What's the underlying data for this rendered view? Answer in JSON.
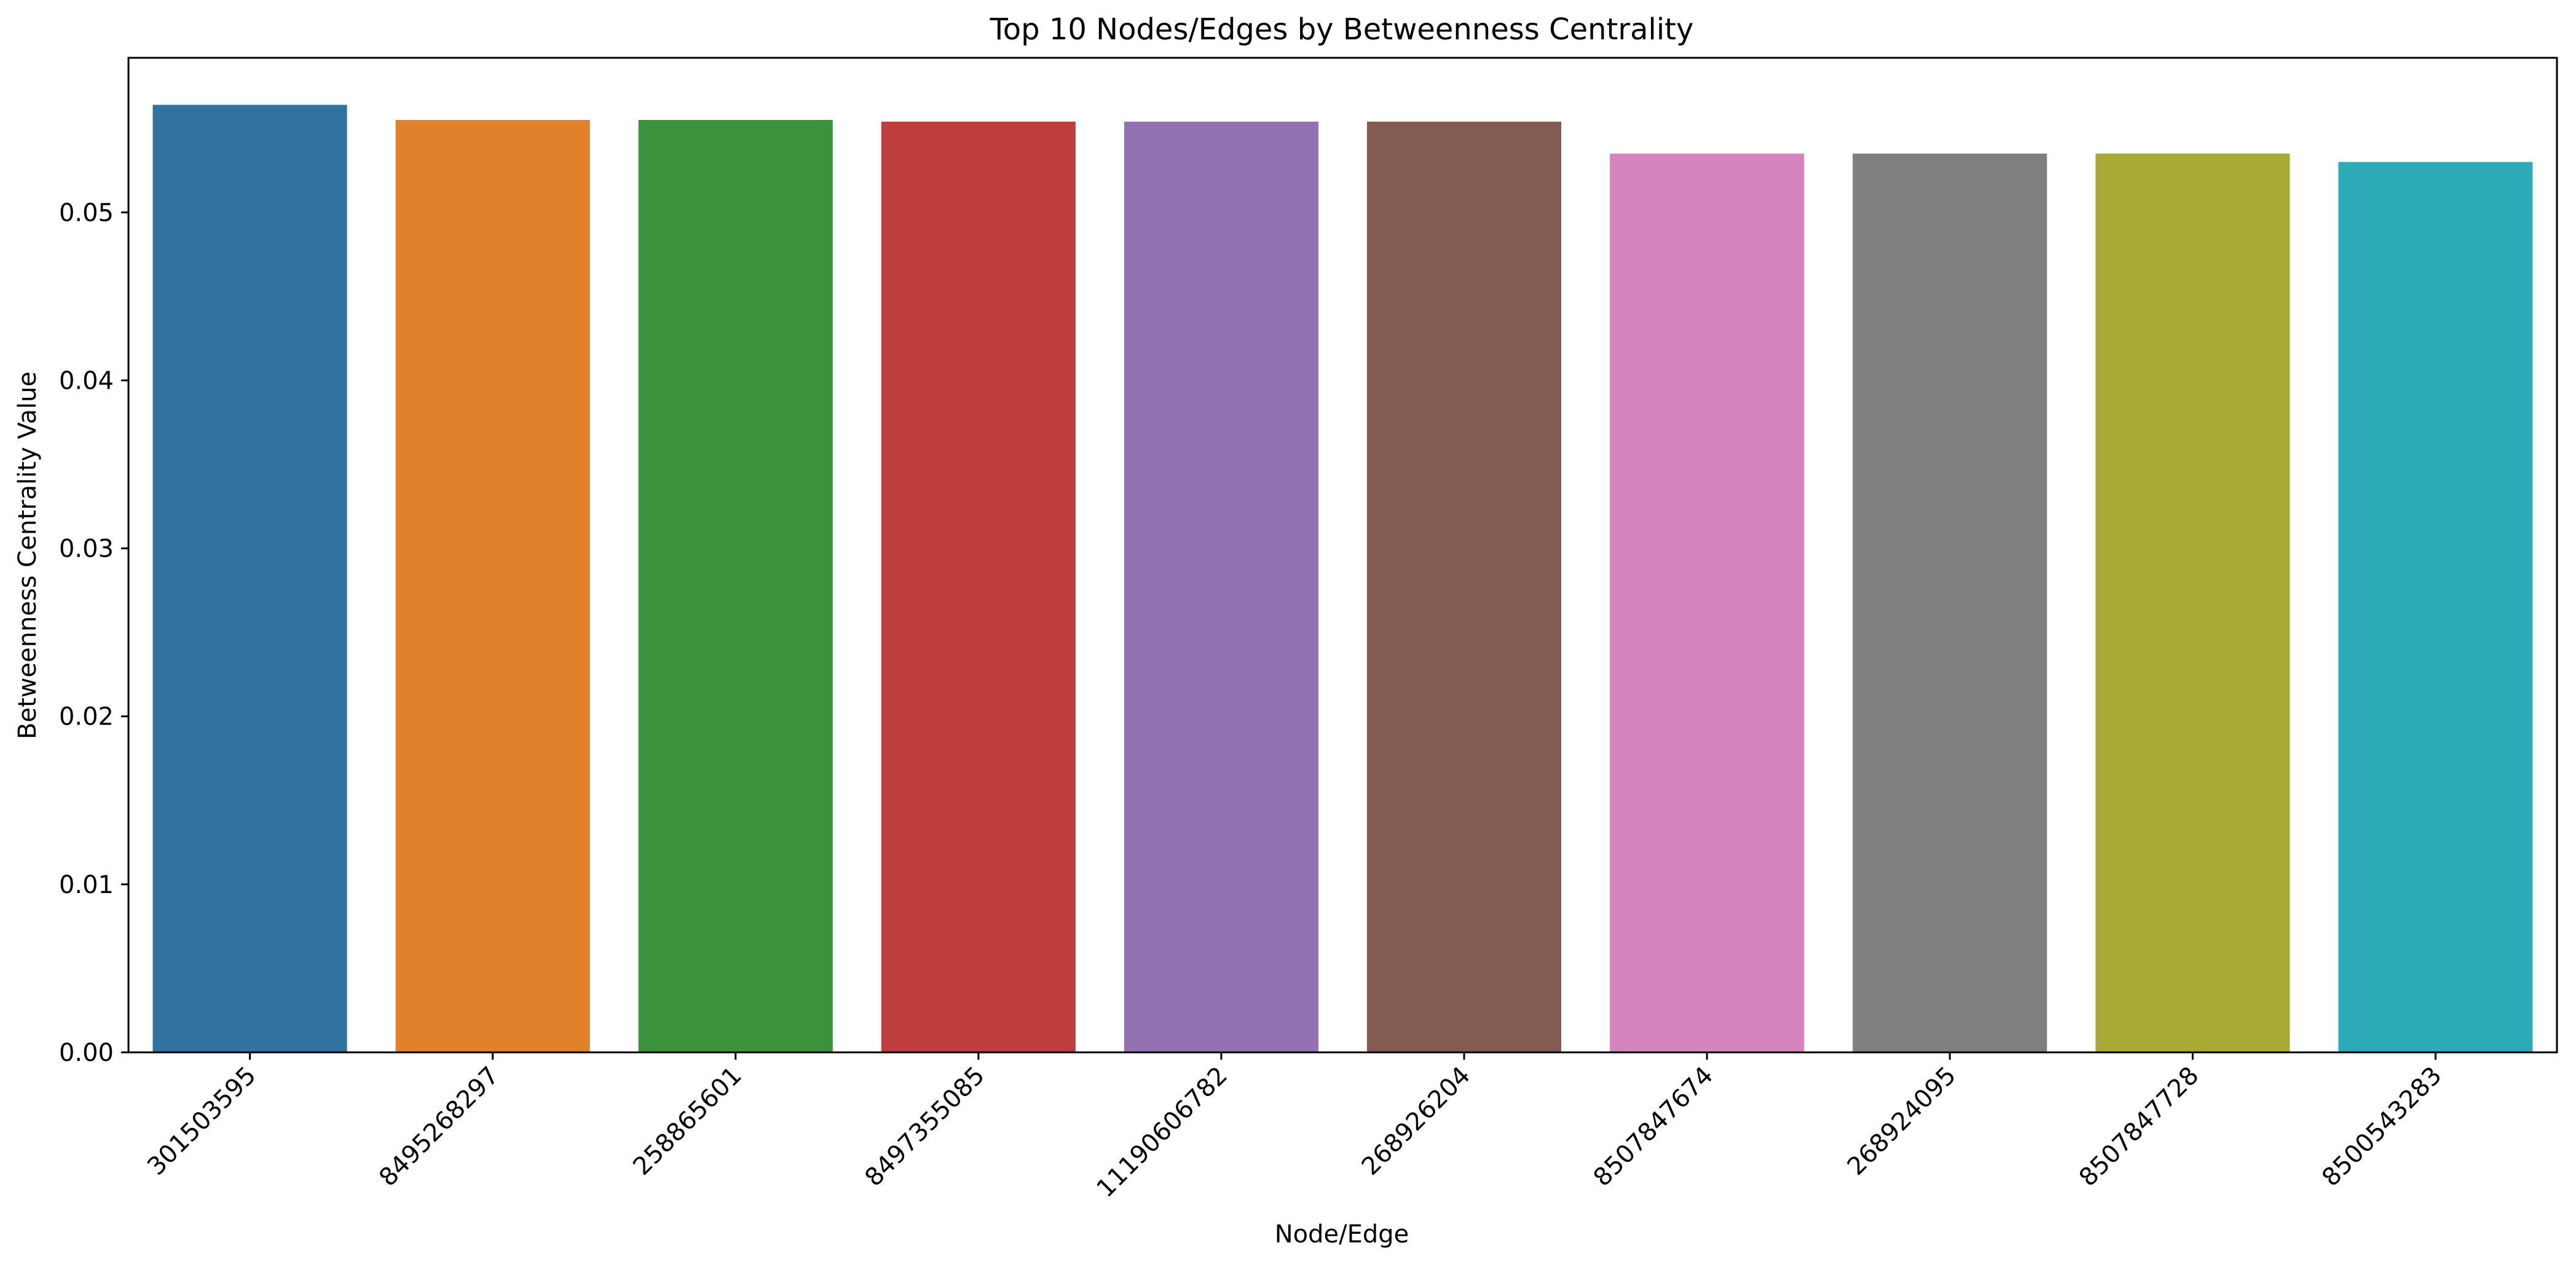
{
  "chart_data": {
    "type": "bar",
    "title": "Top 10 Nodes/Edges by Betweenness Centrality",
    "xlabel": "Node/Edge",
    "ylabel": "Betweenness Centrality Value",
    "categories": [
      "301503595",
      "8495268297",
      "258865601",
      "8497355085",
      "11190606782",
      "268926204",
      "8507847674",
      "268924095",
      "8507847728",
      "8500543283"
    ],
    "values": [
      0.0564,
      0.0555,
      0.0555,
      0.0554,
      0.0554,
      0.0554,
      0.0535,
      0.0535,
      0.0535,
      0.053
    ],
    "colors": [
      "#3274a1",
      "#e1812c",
      "#3a923a",
      "#c03d3e",
      "#9372b2",
      "#845b53",
      "#d684bd",
      "#7f7f7f",
      "#a9aa35",
      "#2eabb8"
    ],
    "ylim": [
      0,
      0.0592
    ],
    "yticks": [
      0.0,
      0.01,
      0.02,
      0.03,
      0.04,
      0.05
    ],
    "ytick_labels": [
      "0.00",
      "0.01",
      "0.02",
      "0.03",
      "0.04",
      "0.05"
    ],
    "grid": false,
    "legend": "none"
  }
}
